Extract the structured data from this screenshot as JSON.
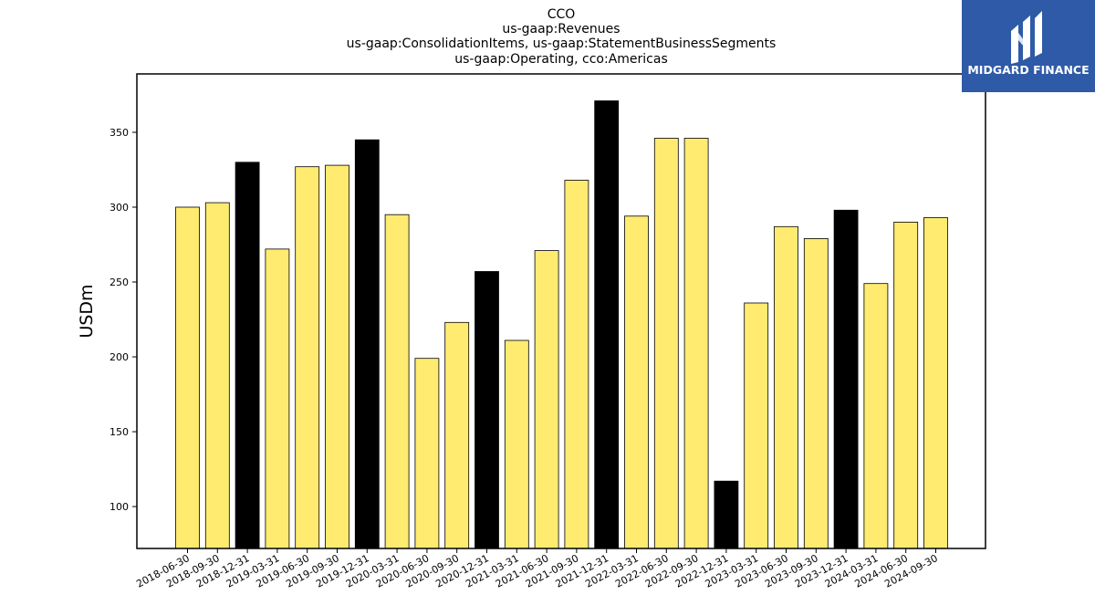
{
  "chart_data": {
    "type": "bar",
    "title_lines": [
      "CCO",
      "us-gaap:Revenues",
      "us-gaap:ConsolidationItems, us-gaap:StatementBusinessSegments",
      "us-gaap:Operating, cco:Americas"
    ],
    "xlabel": "",
    "ylabel": "USDm",
    "ylim": [
      72,
      389
    ],
    "yticks": [
      100,
      150,
      200,
      250,
      300,
      350
    ],
    "grid": false,
    "categories": [
      "2018-06-30",
      "2018-09-30",
      "2018-12-31",
      "2019-03-31",
      "2019-06-30",
      "2019-09-30",
      "2019-12-31",
      "2020-03-31",
      "2020-06-30",
      "2020-09-30",
      "2020-12-31",
      "2021-03-31",
      "2021-06-30",
      "2021-09-30",
      "2021-12-31",
      "2022-03-31",
      "2022-06-30",
      "2022-09-30",
      "2022-12-31",
      "2023-03-31",
      "2023-06-30",
      "2023-09-30",
      "2023-12-31",
      "2024-03-31",
      "2024-06-30",
      "2024-09-30"
    ],
    "values": [
      300,
      303,
      330,
      272,
      327,
      328,
      345,
      295,
      199,
      223,
      257,
      211,
      271,
      318,
      371,
      294,
      346,
      346,
      117,
      236,
      287,
      279,
      298,
      249,
      290,
      293
    ],
    "highlight": [
      false,
      false,
      true,
      false,
      false,
      false,
      true,
      false,
      false,
      false,
      true,
      false,
      false,
      false,
      true,
      false,
      false,
      false,
      true,
      false,
      false,
      false,
      true,
      false,
      false,
      false
    ],
    "colors": {
      "bar": "#ffeb70",
      "highlight": "#000000",
      "edge": "#000000"
    }
  },
  "logo": {
    "text": "MIDGARD FINANCE",
    "background": "#2e5aa7",
    "icon": "midgard-m-logo-icon"
  }
}
